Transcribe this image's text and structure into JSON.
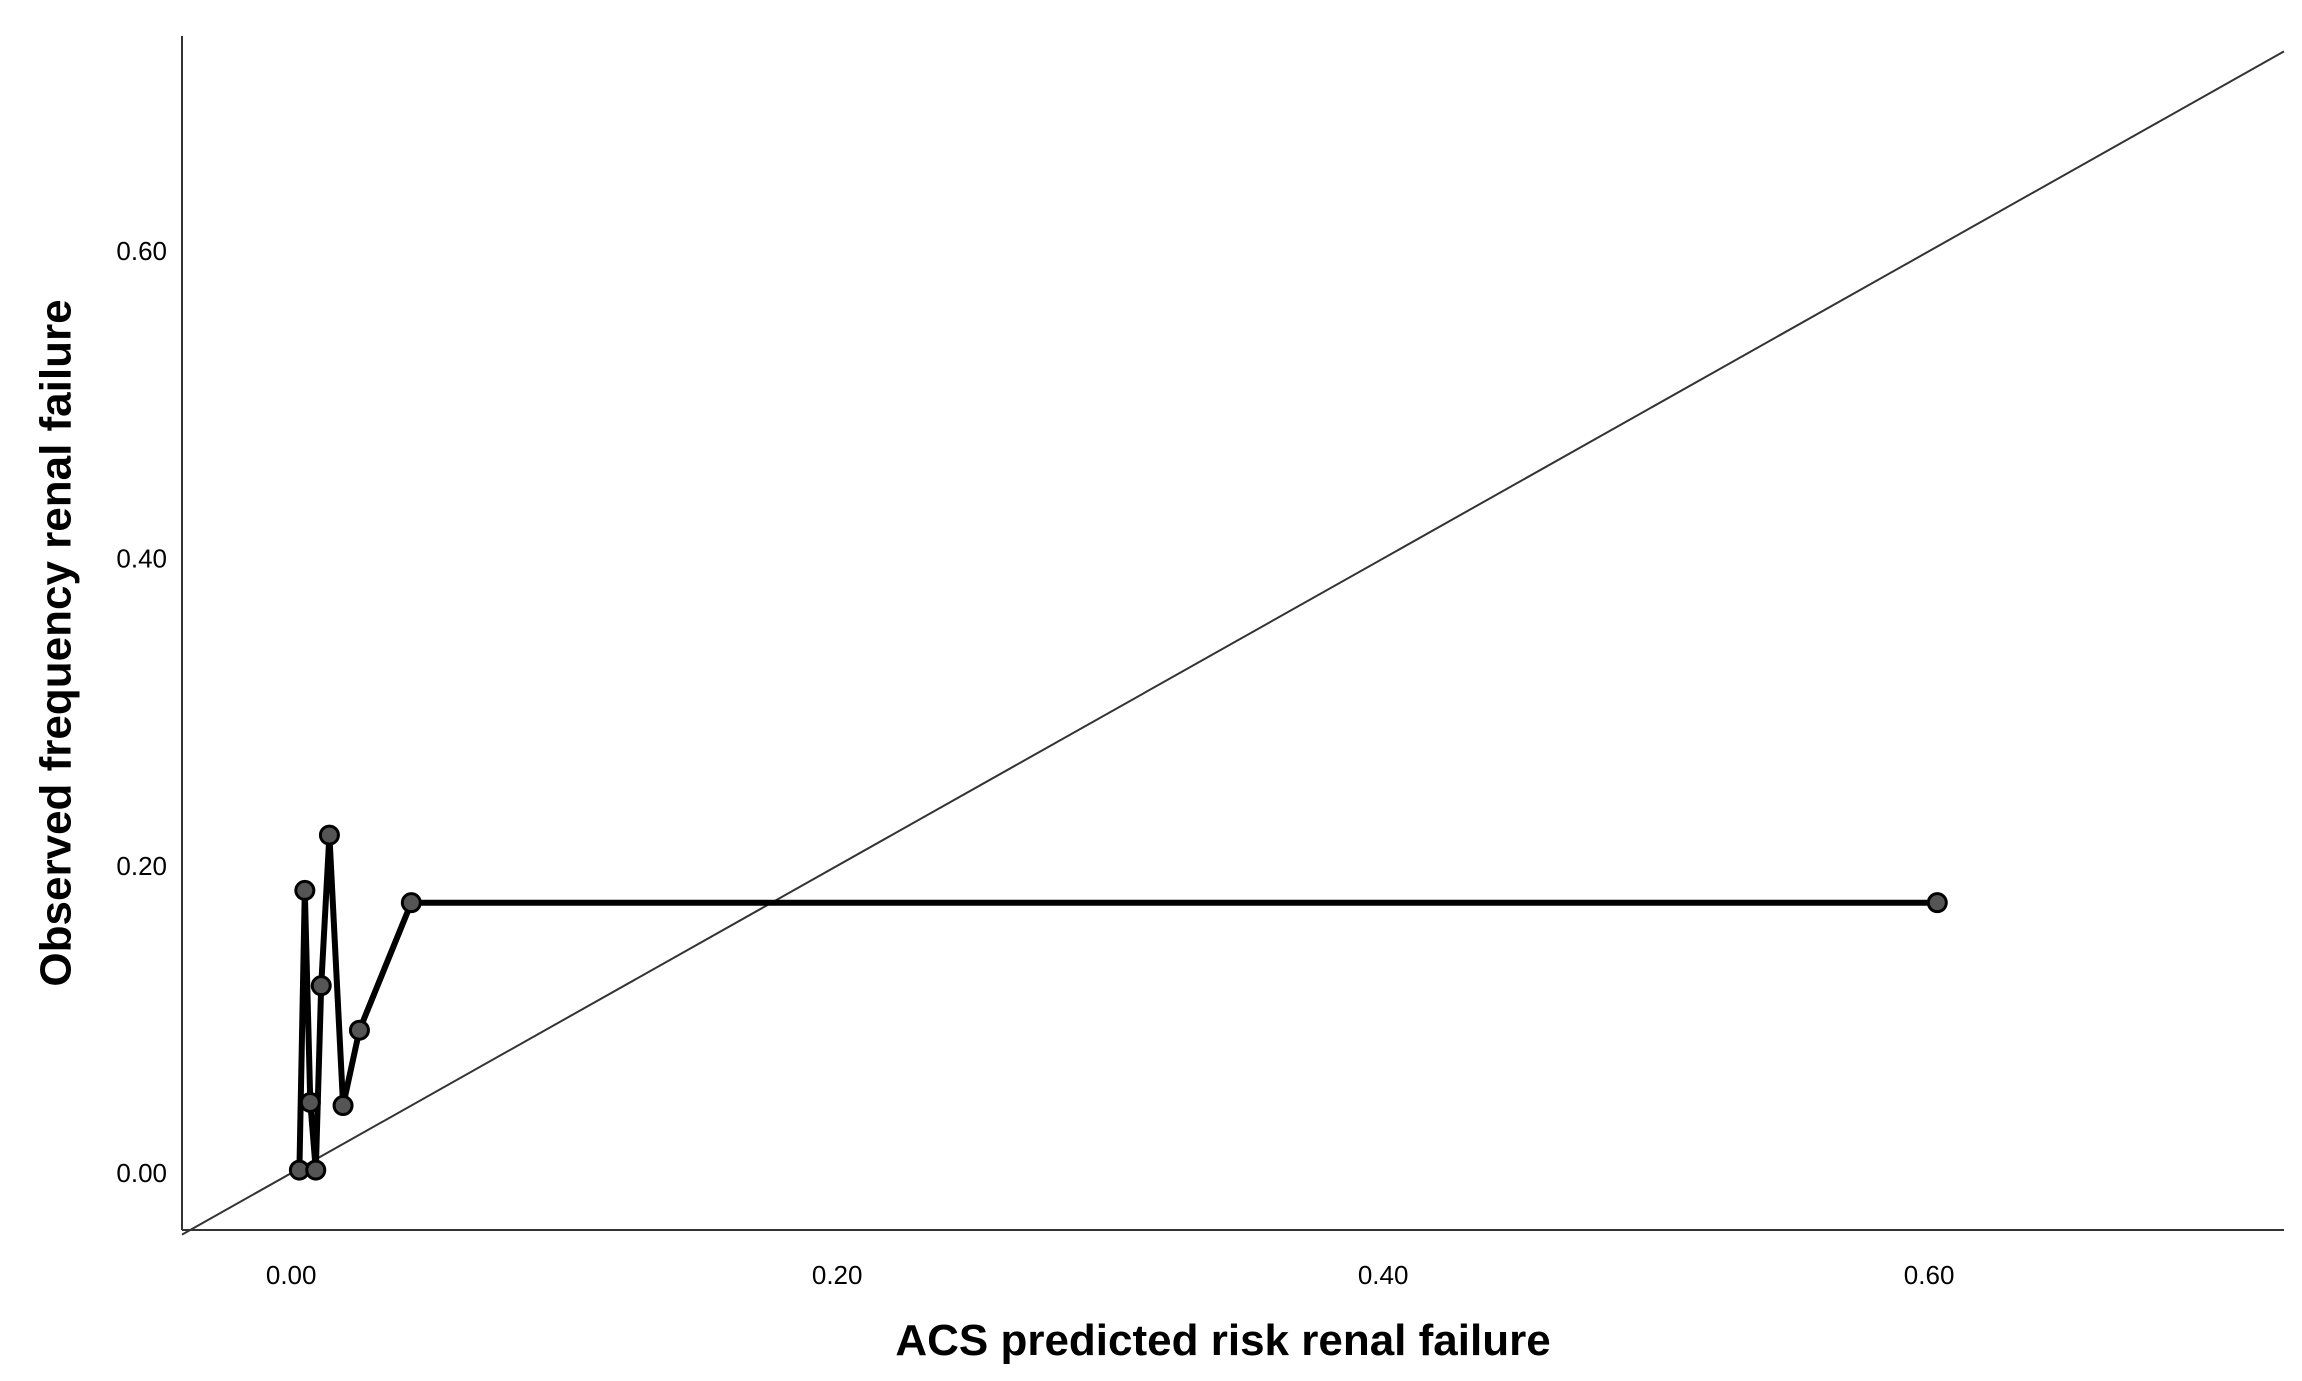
{
  "chart_data": {
    "type": "line",
    "title": "",
    "xlabel": "ACS predicted risk renal failure",
    "ylabel": "Observed frequency renal failure",
    "xlim": [
      -0.04,
      0.73
    ],
    "ylim": [
      -0.037,
      0.74
    ],
    "grid": false,
    "x_ticks": [
      0.0,
      0.2,
      0.4,
      0.6
    ],
    "x_tick_labels": [
      "0.00",
      "0.20",
      "0.40",
      "0.60"
    ],
    "y_ticks": [
      0.0,
      0.2,
      0.4,
      0.6
    ],
    "y_tick_labels": [
      "0.00",
      "0.20",
      "0.40",
      "0.60"
    ],
    "series": [
      {
        "x": [
          0.003,
          0.005,
          0.007,
          0.009,
          0.011,
          0.014,
          0.019,
          0.025,
          0.044,
          0.603
        ],
        "y": [
          0.002,
          0.184,
          0.046,
          0.002,
          0.122,
          0.22,
          0.044,
          0.093,
          0.176,
          0.176
        ],
        "color": "#000000",
        "marker_color": "#555555"
      }
    ],
    "reference_line": {
      "x": [
        -0.04,
        0.73
      ],
      "y": [
        -0.04,
        0.73
      ],
      "color": "#333333"
    }
  }
}
